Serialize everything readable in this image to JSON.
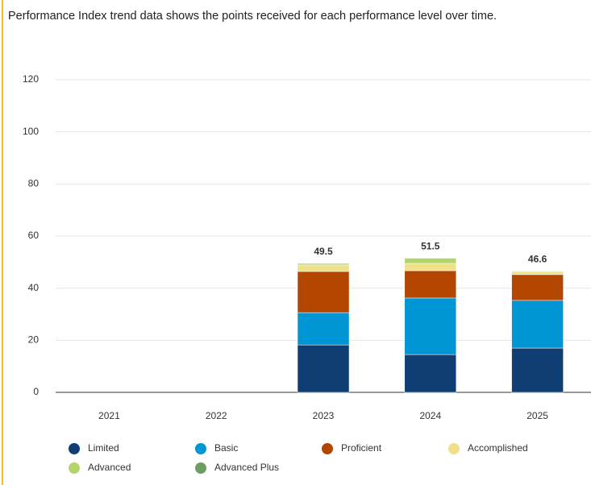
{
  "chart_data": {
    "type": "stacked_bar",
    "title": "Performance Index trend data shows the points received for each performance level over time.",
    "categories": [
      "2021",
      "2022",
      "2023",
      "2024",
      "2025"
    ],
    "series": [
      {
        "name": "Limited",
        "color": "#0e3e73",
        "values": [
          null,
          null,
          18.2,
          14.5,
          17.0
        ]
      },
      {
        "name": "Basic",
        "color": "#0096d6",
        "values": [
          null,
          null,
          12.4,
          21.7,
          18.3
        ]
      },
      {
        "name": "Proficient",
        "color": "#b34700",
        "values": [
          null,
          null,
          15.8,
          10.5,
          9.9
        ]
      },
      {
        "name": "Accomplished",
        "color": "#f0e08a",
        "values": [
          null,
          null,
          2.5,
          2.8,
          1.2
        ]
      },
      {
        "name": "Advanced",
        "color": "#b5d56a",
        "values": [
          null,
          null,
          0.6,
          2.0,
          0.2
        ]
      },
      {
        "name": "Advanced Plus",
        "color": "#6e9e5f",
        "values": [
          null,
          null,
          0,
          0,
          0
        ]
      }
    ],
    "totals": [
      null,
      null,
      49.5,
      51.5,
      46.6
    ],
    "ylim": [
      0,
      120
    ],
    "yticks": [
      0,
      20,
      40,
      60,
      80,
      100,
      120
    ],
    "grid": true
  }
}
